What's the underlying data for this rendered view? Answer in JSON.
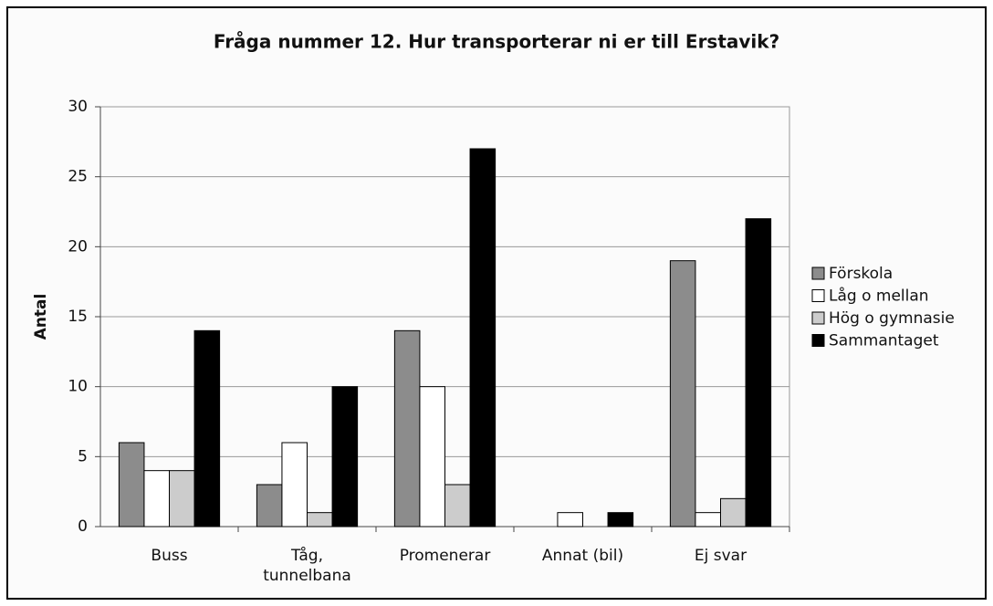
{
  "chart_data": {
    "type": "bar",
    "title": "Fråga nummer 12. Hur transporterar ni er till Erstavik?",
    "y_label": "Antal",
    "categories": [
      "Buss",
      "Tåg, tunnelbana",
      "Promenerar",
      "Annat (bil)",
      "Ej svar"
    ],
    "series": [
      {
        "name": "Förskola",
        "color": "#8c8c8c",
        "values": [
          6,
          3,
          14,
          0,
          19
        ]
      },
      {
        "name": "Låg o mellan",
        "color": "#ffffff",
        "values": [
          4,
          6,
          10,
          1,
          1
        ]
      },
      {
        "name": "Hög o gymnasie",
        "color": "#cccccc",
        "values": [
          4,
          1,
          3,
          0,
          2
        ]
      },
      {
        "name": "Sammantaget",
        "color": "#000000",
        "values": [
          14,
          10,
          27,
          1,
          22
        ]
      }
    ],
    "ylim": [
      0,
      30
    ],
    "yticks": [
      0,
      5,
      10,
      15,
      20,
      25,
      30
    ],
    "grid": true,
    "legend": "right"
  }
}
